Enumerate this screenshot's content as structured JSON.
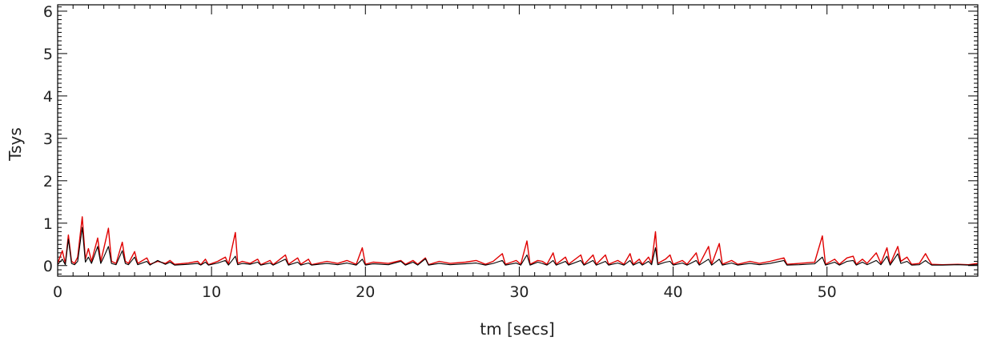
{
  "chart_data": {
    "type": "line",
    "title": "",
    "xlabel": "tm [secs]",
    "ylabel": "Tsys",
    "xlim": [
      0,
      59.8
    ],
    "ylim": [
      -0.25,
      6.15
    ],
    "xticks": [
      0,
      10,
      20,
      30,
      40,
      50
    ],
    "yticks": [
      0,
      1,
      2,
      3,
      4,
      5,
      6
    ],
    "x_minor_step": 1,
    "y_minor_step": 0.1,
    "grid": false,
    "legend": "none",
    "series": [
      {
        "color": "#e00000",
        "points": [
          [
            0,
            0.05
          ],
          [
            0.3,
            0.35
          ],
          [
            0.5,
            0.05
          ],
          [
            0.7,
            0.72
          ],
          [
            0.9,
            0.1
          ],
          [
            1.1,
            0.05
          ],
          [
            1.3,
            0.2
          ],
          [
            1.6,
            1.15
          ],
          [
            1.8,
            0.15
          ],
          [
            2.0,
            0.4
          ],
          [
            2.2,
            0.1
          ],
          [
            2.6,
            0.65
          ],
          [
            2.8,
            0.1
          ],
          [
            3.0,
            0.4
          ],
          [
            3.3,
            0.88
          ],
          [
            3.5,
            0.1
          ],
          [
            3.8,
            0.05
          ],
          [
            4.2,
            0.55
          ],
          [
            4.4,
            0.1
          ],
          [
            4.6,
            0.05
          ],
          [
            5.0,
            0.33
          ],
          [
            5.2,
            0.05
          ],
          [
            5.8,
            0.18
          ],
          [
            6.0,
            0.03
          ],
          [
            6.5,
            0.1
          ],
          [
            7.0,
            0.05
          ],
          [
            7.3,
            0.12
          ],
          [
            7.6,
            0.03
          ],
          [
            8.5,
            0.06
          ],
          [
            9.1,
            0.1
          ],
          [
            9.3,
            0.02
          ],
          [
            9.6,
            0.15
          ],
          [
            9.8,
            0.02
          ],
          [
            10.4,
            0.1
          ],
          [
            10.9,
            0.2
          ],
          [
            11.1,
            0.03
          ],
          [
            11.55,
            0.78
          ],
          [
            11.7,
            0.05
          ],
          [
            12.0,
            0.1
          ],
          [
            12.5,
            0.05
          ],
          [
            13.0,
            0.15
          ],
          [
            13.2,
            0.02
          ],
          [
            13.8,
            0.12
          ],
          [
            14.0,
            0.02
          ],
          [
            14.8,
            0.25
          ],
          [
            15.0,
            0.03
          ],
          [
            15.6,
            0.18
          ],
          [
            15.8,
            0.03
          ],
          [
            16.3,
            0.15
          ],
          [
            16.5,
            0.02
          ],
          [
            17.5,
            0.1
          ],
          [
            18.2,
            0.05
          ],
          [
            18.8,
            0.12
          ],
          [
            19.4,
            0.03
          ],
          [
            19.8,
            0.42
          ],
          [
            20.0,
            0.03
          ],
          [
            20.5,
            0.08
          ],
          [
            21.5,
            0.05
          ],
          [
            22.3,
            0.12
          ],
          [
            22.6,
            0.03
          ],
          [
            23.1,
            0.12
          ],
          [
            23.4,
            0.03
          ],
          [
            23.9,
            0.18
          ],
          [
            24.1,
            0.02
          ],
          [
            24.8,
            0.1
          ],
          [
            25.5,
            0.05
          ],
          [
            26.5,
            0.08
          ],
          [
            27.2,
            0.12
          ],
          [
            27.8,
            0.03
          ],
          [
            28.3,
            0.1
          ],
          [
            28.9,
            0.28
          ],
          [
            29.1,
            0.03
          ],
          [
            29.8,
            0.12
          ],
          [
            30.1,
            0.03
          ],
          [
            30.5,
            0.58
          ],
          [
            30.7,
            0.03
          ],
          [
            31.2,
            0.12
          ],
          [
            31.5,
            0.1
          ],
          [
            31.8,
            0.03
          ],
          [
            32.2,
            0.3
          ],
          [
            32.4,
            0.03
          ],
          [
            33.0,
            0.2
          ],
          [
            33.2,
            0.03
          ],
          [
            34.0,
            0.25
          ],
          [
            34.2,
            0.02
          ],
          [
            34.8,
            0.25
          ],
          [
            35.0,
            0.03
          ],
          [
            35.6,
            0.25
          ],
          [
            35.8,
            0.03
          ],
          [
            36.4,
            0.12
          ],
          [
            36.8,
            0.03
          ],
          [
            37.2,
            0.28
          ],
          [
            37.4,
            0.03
          ],
          [
            37.8,
            0.15
          ],
          [
            38.0,
            0.03
          ],
          [
            38.4,
            0.2
          ],
          [
            38.6,
            0.05
          ],
          [
            38.85,
            0.8
          ],
          [
            39.0,
            0.05
          ],
          [
            39.5,
            0.15
          ],
          [
            39.8,
            0.25
          ],
          [
            40.0,
            0.03
          ],
          [
            40.6,
            0.12
          ],
          [
            40.9,
            0.03
          ],
          [
            41.5,
            0.3
          ],
          [
            41.7,
            0.03
          ],
          [
            42.3,
            0.45
          ],
          [
            42.5,
            0.03
          ],
          [
            43.0,
            0.52
          ],
          [
            43.2,
            0.03
          ],
          [
            43.8,
            0.12
          ],
          [
            44.2,
            0.03
          ],
          [
            45.0,
            0.1
          ],
          [
            45.6,
            0.05
          ],
          [
            46.3,
            0.1
          ],
          [
            47.2,
            0.18
          ],
          [
            47.4,
            0.03
          ],
          [
            48.2,
            0.05
          ],
          [
            49.2,
            0.08
          ],
          [
            49.7,
            0.7
          ],
          [
            49.9,
            0.03
          ],
          [
            50.5,
            0.15
          ],
          [
            50.8,
            0.03
          ],
          [
            51.3,
            0.18
          ],
          [
            51.7,
            0.22
          ],
          [
            51.9,
            0.03
          ],
          [
            52.3,
            0.15
          ],
          [
            52.6,
            0.05
          ],
          [
            53.2,
            0.3
          ],
          [
            53.5,
            0.05
          ],
          [
            53.9,
            0.42
          ],
          [
            54.1,
            0.03
          ],
          [
            54.6,
            0.45
          ],
          [
            54.8,
            0.1
          ],
          [
            55.2,
            0.2
          ],
          [
            55.5,
            0.03
          ],
          [
            56.0,
            0.05
          ],
          [
            56.4,
            0.28
          ],
          [
            56.6,
            0.15
          ],
          [
            56.8,
            0.03
          ],
          [
            57.5,
            0.02
          ],
          [
            58.5,
            0.03
          ],
          [
            59.2,
            0.02
          ],
          [
            59.8,
            0.05
          ]
        ]
      },
      {
        "color": "#000000",
        "points": [
          [
            0,
            0.02
          ],
          [
            0.3,
            0.15
          ],
          [
            0.5,
            0.02
          ],
          [
            0.7,
            0.62
          ],
          [
            0.9,
            0.05
          ],
          [
            1.1,
            0.02
          ],
          [
            1.3,
            0.1
          ],
          [
            1.6,
            0.9
          ],
          [
            1.8,
            0.08
          ],
          [
            2.0,
            0.2
          ],
          [
            2.2,
            0.05
          ],
          [
            2.6,
            0.45
          ],
          [
            2.8,
            0.05
          ],
          [
            3.0,
            0.2
          ],
          [
            3.3,
            0.45
          ],
          [
            3.5,
            0.05
          ],
          [
            3.8,
            0.02
          ],
          [
            4.2,
            0.35
          ],
          [
            4.4,
            0.05
          ],
          [
            4.6,
            0.02
          ],
          [
            5.0,
            0.2
          ],
          [
            5.2,
            0.02
          ],
          [
            5.8,
            0.1
          ],
          [
            6.0,
            0.01
          ],
          [
            6.5,
            0.12
          ],
          [
            7.0,
            0.03
          ],
          [
            7.3,
            0.08
          ],
          [
            7.6,
            0.01
          ],
          [
            8.5,
            0.03
          ],
          [
            9.1,
            0.05
          ],
          [
            9.3,
            0.01
          ],
          [
            9.6,
            0.08
          ],
          [
            9.8,
            0.01
          ],
          [
            10.4,
            0.06
          ],
          [
            10.9,
            0.12
          ],
          [
            11.1,
            0.01
          ],
          [
            11.55,
            0.22
          ],
          [
            11.7,
            0.02
          ],
          [
            12.0,
            0.05
          ],
          [
            12.5,
            0.03
          ],
          [
            13.0,
            0.08
          ],
          [
            13.2,
            0.01
          ],
          [
            13.8,
            0.06
          ],
          [
            14.0,
            0.01
          ],
          [
            14.8,
            0.15
          ],
          [
            15.0,
            0.01
          ],
          [
            15.6,
            0.08
          ],
          [
            15.8,
            0.01
          ],
          [
            16.3,
            0.06
          ],
          [
            16.5,
            0.01
          ],
          [
            17.5,
            0.05
          ],
          [
            18.2,
            0.02
          ],
          [
            18.8,
            0.06
          ],
          [
            19.4,
            0.01
          ],
          [
            19.8,
            0.15
          ],
          [
            20.0,
            0.01
          ],
          [
            20.5,
            0.04
          ],
          [
            21.5,
            0.02
          ],
          [
            22.3,
            0.1
          ],
          [
            22.6,
            0.01
          ],
          [
            23.1,
            0.08
          ],
          [
            23.4,
            0.01
          ],
          [
            23.9,
            0.16
          ],
          [
            24.1,
            0.01
          ],
          [
            24.8,
            0.05
          ],
          [
            25.5,
            0.02
          ],
          [
            26.5,
            0.04
          ],
          [
            27.2,
            0.06
          ],
          [
            27.8,
            0.01
          ],
          [
            28.3,
            0.05
          ],
          [
            28.9,
            0.12
          ],
          [
            29.1,
            0.01
          ],
          [
            29.8,
            0.06
          ],
          [
            30.1,
            0.01
          ],
          [
            30.5,
            0.25
          ],
          [
            30.7,
            0.01
          ],
          [
            31.2,
            0.08
          ],
          [
            31.5,
            0.05
          ],
          [
            31.8,
            0.01
          ],
          [
            32.2,
            0.12
          ],
          [
            32.4,
            0.01
          ],
          [
            33.0,
            0.1
          ],
          [
            33.2,
            0.01
          ],
          [
            34.0,
            0.12
          ],
          [
            34.2,
            0.01
          ],
          [
            34.8,
            0.12
          ],
          [
            35.0,
            0.01
          ],
          [
            35.6,
            0.1
          ],
          [
            35.8,
            0.01
          ],
          [
            36.4,
            0.06
          ],
          [
            36.8,
            0.01
          ],
          [
            37.2,
            0.12
          ],
          [
            37.4,
            0.01
          ],
          [
            37.8,
            0.08
          ],
          [
            38.0,
            0.01
          ],
          [
            38.4,
            0.1
          ],
          [
            38.6,
            0.02
          ],
          [
            38.85,
            0.42
          ],
          [
            39.0,
            0.02
          ],
          [
            39.5,
            0.08
          ],
          [
            39.8,
            0.1
          ],
          [
            40.0,
            0.01
          ],
          [
            40.6,
            0.06
          ],
          [
            40.9,
            0.01
          ],
          [
            41.5,
            0.12
          ],
          [
            41.7,
            0.01
          ],
          [
            42.3,
            0.15
          ],
          [
            42.5,
            0.01
          ],
          [
            43.0,
            0.15
          ],
          [
            43.2,
            0.01
          ],
          [
            43.8,
            0.06
          ],
          [
            44.2,
            0.01
          ],
          [
            45.0,
            0.05
          ],
          [
            45.6,
            0.02
          ],
          [
            46.3,
            0.05
          ],
          [
            47.2,
            0.12
          ],
          [
            47.4,
            0.01
          ],
          [
            48.2,
            0.02
          ],
          [
            49.2,
            0.04
          ],
          [
            49.7,
            0.2
          ],
          [
            49.9,
            0.01
          ],
          [
            50.5,
            0.08
          ],
          [
            50.8,
            0.01
          ],
          [
            51.3,
            0.1
          ],
          [
            51.7,
            0.12
          ],
          [
            51.9,
            0.01
          ],
          [
            52.3,
            0.08
          ],
          [
            52.6,
            0.02
          ],
          [
            53.2,
            0.12
          ],
          [
            53.5,
            0.02
          ],
          [
            53.9,
            0.22
          ],
          [
            54.1,
            0.01
          ],
          [
            54.6,
            0.28
          ],
          [
            54.8,
            0.05
          ],
          [
            55.2,
            0.1
          ],
          [
            55.5,
            0.01
          ],
          [
            56.0,
            0.02
          ],
          [
            56.4,
            0.12
          ],
          [
            56.6,
            0.06
          ],
          [
            56.8,
            0.01
          ],
          [
            57.5,
            0.01
          ],
          [
            58.5,
            0.02
          ],
          [
            59.2,
            0.01
          ],
          [
            59.8,
            0.02
          ]
        ]
      }
    ]
  }
}
